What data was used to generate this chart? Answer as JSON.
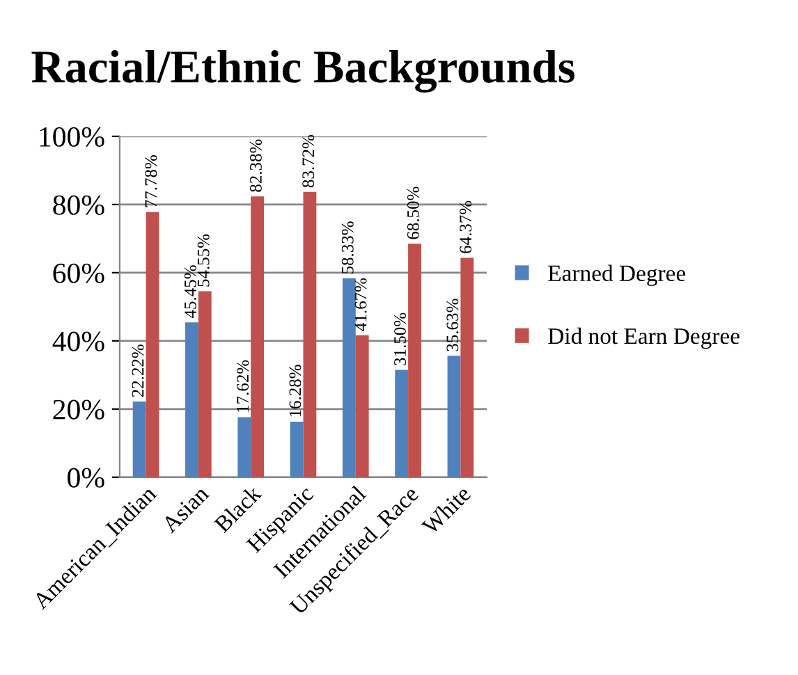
{
  "chart_data": {
    "type": "bar",
    "title": "Racial/Ethnic Backgrounds",
    "categories": [
      "American_Indian",
      "Asian",
      "Black",
      "Hispanic",
      "International",
      "Unspecified_Race",
      "White"
    ],
    "series": [
      {
        "name": "Earned Degree",
        "color": "#4f81bd",
        "values": [
          22.22,
          45.45,
          17.62,
          16.28,
          58.33,
          31.5,
          35.63
        ],
        "value_labels": [
          "22.22%",
          "45.45%",
          "17.62%",
          "16.28%",
          "58.33%",
          "31.50%",
          "35.63%"
        ]
      },
      {
        "name": "Did not Earn Degree",
        "color": "#c0504d",
        "values": [
          77.78,
          54.55,
          82.38,
          83.72,
          41.67,
          68.5,
          64.37
        ],
        "value_labels": [
          "77.78%",
          "54.55%",
          "82.38%",
          "83.72%",
          "41.67%",
          "68.50%",
          "64.37%"
        ]
      }
    ],
    "ylim": [
      0,
      100
    ],
    "yticks": [
      {
        "value": 0,
        "label": "0%"
      },
      {
        "value": 20,
        "label": "20%"
      },
      {
        "value": 40,
        "label": "40%"
      },
      {
        "value": 60,
        "label": "60%"
      },
      {
        "value": 80,
        "label": "80%"
      },
      {
        "value": 100,
        "label": "100%"
      }
    ],
    "grid": "y",
    "legend": "right"
  }
}
